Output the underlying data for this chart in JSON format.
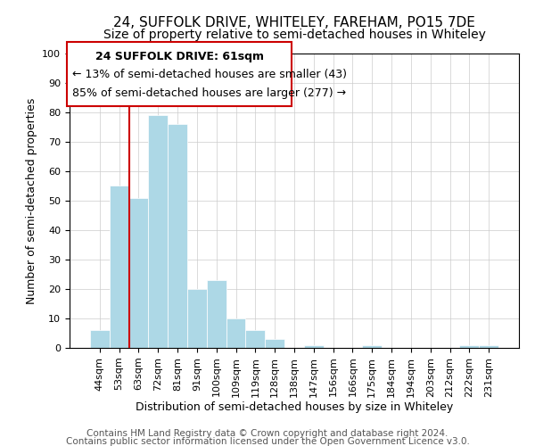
{
  "title": "24, SUFFOLK DRIVE, WHITELEY, FAREHAM, PO15 7DE",
  "subtitle": "Size of property relative to semi-detached houses in Whiteley",
  "xlabel": "Distribution of semi-detached houses by size in Whiteley",
  "ylabel": "Number of semi-detached properties",
  "bin_labels": [
    "44sqm",
    "53sqm",
    "63sqm",
    "72sqm",
    "81sqm",
    "91sqm",
    "100sqm",
    "109sqm",
    "119sqm",
    "128sqm",
    "138sqm",
    "147sqm",
    "156sqm",
    "166sqm",
    "175sqm",
    "184sqm",
    "194sqm",
    "203sqm",
    "212sqm",
    "222sqm",
    "231sqm"
  ],
  "bar_heights": [
    6,
    55,
    51,
    79,
    76,
    20,
    23,
    10,
    6,
    3,
    0,
    1,
    0,
    0,
    1,
    0,
    0,
    0,
    0,
    1,
    1
  ],
  "bar_color": "#add8e6",
  "highlight_line_color": "#cc0000",
  "annotation_title": "24 SUFFOLK DRIVE: 61sqm",
  "annotation_line1": "← 13% of semi-detached houses are smaller (43)",
  "annotation_line2": "85% of semi-detached houses are larger (277) →",
  "annotation_box_color": "#ffffff",
  "annotation_box_edge": "#cc0000",
  "ylim": [
    0,
    100
  ],
  "yticks": [
    0,
    10,
    20,
    30,
    40,
    50,
    60,
    70,
    80,
    90,
    100
  ],
  "footer1": "Contains HM Land Registry data © Crown copyright and database right 2024.",
  "footer2": "Contains public sector information licensed under the Open Government Licence v3.0.",
  "title_fontsize": 11,
  "subtitle_fontsize": 10,
  "axis_label_fontsize": 9,
  "tick_fontsize": 8,
  "annotation_title_fontsize": 9,
  "annotation_body_fontsize": 9,
  "footer_fontsize": 7.5
}
